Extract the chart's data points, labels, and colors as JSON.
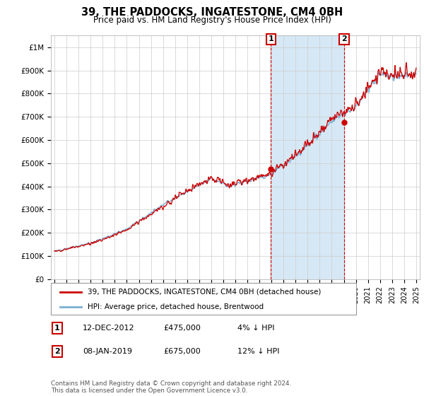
{
  "title": "39, THE PADDOCKS, INGATESTONE, CM4 0BH",
  "subtitle": "Price paid vs. HM Land Registry's House Price Index (HPI)",
  "legend_line1": "39, THE PADDOCKS, INGATESTONE, CM4 0BH (detached house)",
  "legend_line2": "HPI: Average price, detached house, Brentwood",
  "annotation1_label": "1",
  "annotation1_date": "12-DEC-2012",
  "annotation1_price": "£475,000",
  "annotation1_hpi": "4% ↓ HPI",
  "annotation2_label": "2",
  "annotation2_date": "08-JAN-2019",
  "annotation2_price": "£675,000",
  "annotation2_hpi": "12% ↓ HPI",
  "footer": "Contains HM Land Registry data © Crown copyright and database right 2024.\nThis data is licensed under the Open Government Licence v3.0.",
  "hpi_color": "#7bafd4",
  "hpi_fill_color": "#d6e8f5",
  "price_color": "#cc0000",
  "marker_color": "#cc0000",
  "annotation_box_color": "#cc0000",
  "ylim": [
    0,
    1050000
  ],
  "yticks": [
    0,
    100000,
    200000,
    300000,
    400000,
    500000,
    600000,
    700000,
    800000,
    900000,
    1000000
  ],
  "ytick_labels": [
    "£0",
    "£100K",
    "£200K",
    "£300K",
    "£400K",
    "£500K",
    "£600K",
    "£700K",
    "£800K",
    "£900K",
    "£1M"
  ],
  "x_start_year": 1995,
  "x_end_year": 2025,
  "sale1_year": 2012.95,
  "sale1_price": 475000,
  "sale2_year": 2019.03,
  "sale2_price": 675000,
  "background_color": "#ffffff",
  "grid_color": "#cccccc"
}
